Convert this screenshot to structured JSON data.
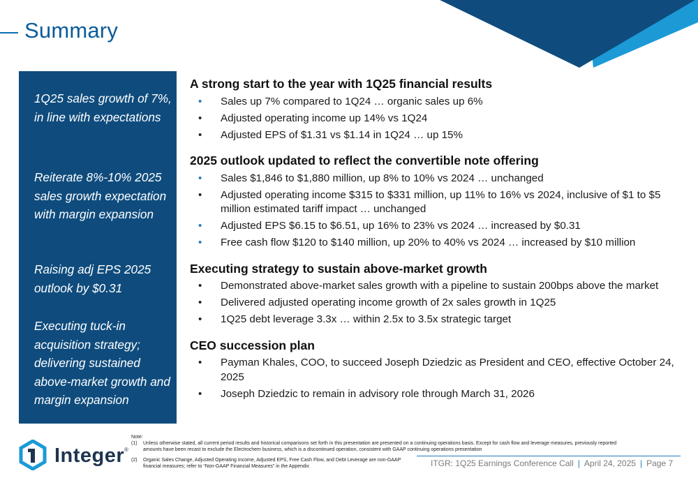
{
  "header": {
    "title": "Summary"
  },
  "sidebar": {
    "items": [
      "1Q25 sales growth of 7%, in line with expectations",
      "Reiterate 8%-10% 2025 sales growth expectation with margin expansion",
      "Raising adj EPS 2025 outlook by $0.31",
      "Executing tuck-in acquisition strategy; delivering sustained above-market growth and margin expansion"
    ]
  },
  "sections": [
    {
      "heading": "A strong start to the year with 1Q25 financial results",
      "bullets": [
        "Sales up 7% compared to 1Q24 … organic sales up 6%",
        "Adjusted operating income up 14% vs 1Q24",
        "Adjusted EPS of $1.31 vs $1.14 in 1Q24 … up 15%"
      ]
    },
    {
      "heading": "2025 outlook updated to reflect the convertible note offering",
      "bullets": [
        "Sales $1,846 to $1,880 million, up 8% to 10% vs 2024 … unchanged",
        "Adjusted operating income $315 to $331 million, up 11% to 16% vs 2024, inclusive of $1 to $5 million estimated tariff impact … unchanged",
        "Adjusted EPS $6.15 to $6.51, up 16% to 23% vs 2024 … increased by $0.31",
        "Free cash flow $120 to $140 million, up 20% to 40% vs 2024 … increased by $10 million"
      ]
    },
    {
      "heading": "Executing strategy to sustain above-market growth",
      "bullets": [
        "Demonstrated above-market sales growth with a pipeline to sustain 200bps above the market",
        "Delivered adjusted operating income growth of 2x sales growth in 1Q25",
        "1Q25 debt leverage 3.3x … within 2.5x to 3.5x strategic target"
      ]
    },
    {
      "heading": "CEO succession plan",
      "bullets": [
        "Payman Khales, COO, to succeed Joseph Dziedzic as President and CEO, effective October 24, 2025",
        "Joseph Dziedzic to remain in advisory role through March 31, 2026"
      ]
    }
  ],
  "bullet_glyph": "•",
  "logo": {
    "name": "Integer",
    "reg": "®"
  },
  "notes": {
    "label": "Note:",
    "items": [
      {
        "num": "(1)",
        "text": "Unless otherwise stated, all current period results and historical comparisons set forth in this presentation are presented on a continuing operations basis. Except for cash flow and leverage measures, previously reported amounts have been recast to exclude the Electrochem business, which is a discontinued operation, consistent with GAAP continuing operations presentation"
      },
      {
        "num": "(2)",
        "text": "Organic Sales Change, Adjusted Operating Income, Adjusted EPS, Free Cash Flow, and Debt Leverage are non-GAAP financial measures; refer to “Non-GAAP Financial Measures” in the Appendix"
      }
    ]
  },
  "footer": {
    "event": "ITGR: 1Q25 Earnings Conference Call",
    "date": "April 24, 2025",
    "page": "Page 7",
    "separator": "|"
  },
  "colors": {
    "title": "#0a5c9a",
    "sidebar_bg": "#0f4c7d",
    "accent_light": "#1c9ad6",
    "accent_dark": "#0f4c7d",
    "bullet_blue": "#1c7cc2",
    "logo_text": "#1e3550"
  }
}
